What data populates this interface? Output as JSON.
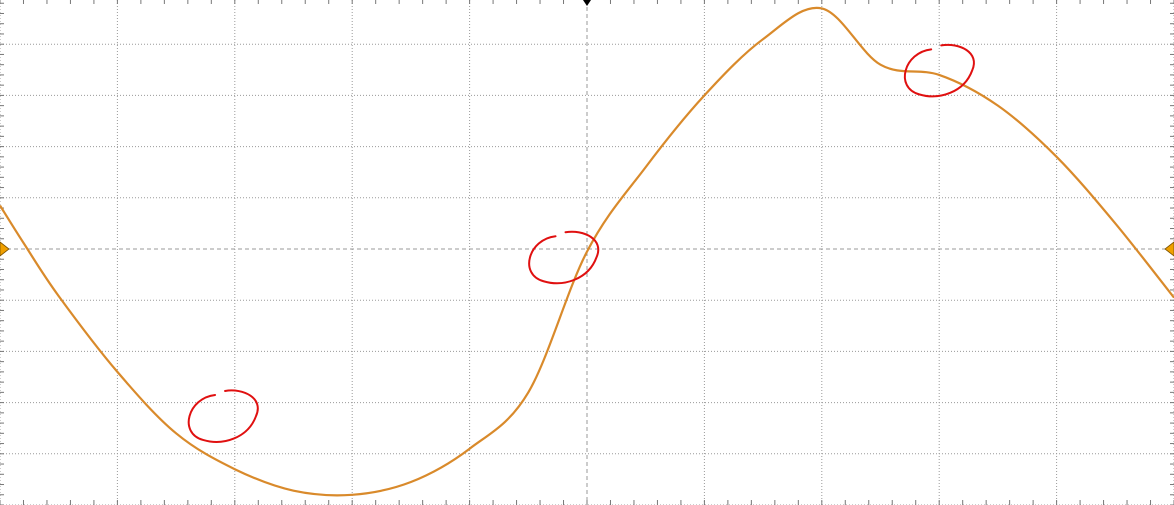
{
  "chart_data": {
    "type": "line",
    "title": "",
    "xlabel": "",
    "ylabel": "",
    "grid": true,
    "x_divisions": 10,
    "y_divisions": 10,
    "xlim": [
      -5,
      5
    ],
    "ylim": [
      -5,
      5
    ],
    "series": [
      {
        "color": "#d98a2b",
        "points": [
          [
            -5.0,
            0.85
          ],
          [
            -4.8,
            0.12
          ],
          [
            -4.5,
            -0.92
          ],
          [
            -4.0,
            -2.4
          ],
          [
            -3.5,
            -3.6
          ],
          [
            -3.0,
            -4.3
          ],
          [
            -2.5,
            -4.72
          ],
          [
            -2.0,
            -4.8
          ],
          [
            -1.5,
            -4.55
          ],
          [
            -1.0,
            -3.9
          ],
          [
            -0.5,
            -2.8
          ],
          [
            0.0,
            -0.05
          ],
          [
            0.5,
            1.6
          ],
          [
            1.0,
            3.0
          ],
          [
            1.5,
            4.1
          ],
          [
            2.0,
            4.7
          ],
          [
            2.5,
            3.6
          ],
          [
            3.0,
            3.4
          ],
          [
            3.5,
            2.8
          ],
          [
            4.0,
            1.8
          ],
          [
            4.5,
            0.5
          ],
          [
            5.0,
            -0.95
          ]
        ]
      }
    ],
    "trace_color": "#d98a2b",
    "grid_color": "#9a9a9a",
    "marker_color": "#f0a000",
    "trigger_marker_color": "#000000",
    "annotation_color": "#e01010",
    "annotations": [
      {
        "shape": "circle",
        "x": -3.1,
        "y": -3.3
      },
      {
        "shape": "circle",
        "x": -0.2,
        "y": -0.2
      },
      {
        "shape": "circle",
        "x": 3.0,
        "y": 3.45
      }
    ]
  }
}
